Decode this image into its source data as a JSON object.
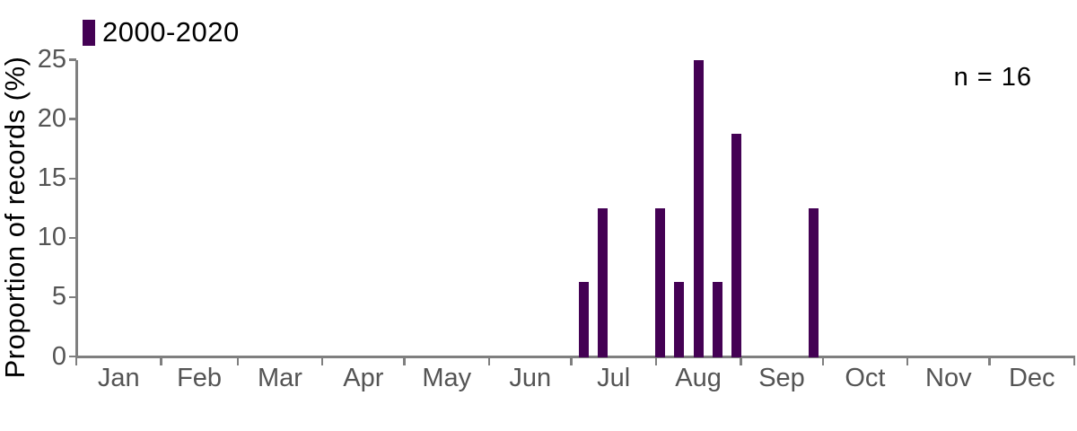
{
  "legend": {
    "label": "2000-2020"
  },
  "annotation": {
    "n_label": "n = 16"
  },
  "colors": {
    "bar": "#440154",
    "axis": "#7f7f7f",
    "tick_text": "#545454",
    "title_text": "#000000",
    "background": "#ffffff"
  },
  "chart_data": {
    "type": "bar",
    "title": "",
    "xlabel": "",
    "ylabel": "Proportion of records (%)",
    "ylim": [
      0,
      25
    ],
    "yticks": [
      0,
      5,
      10,
      15,
      20,
      25
    ],
    "categories_months": [
      "Jan",
      "Feb",
      "Mar",
      "Apr",
      "May",
      "Jun",
      "Jul",
      "Aug",
      "Sep",
      "Oct",
      "Nov",
      "Dec"
    ],
    "month_lengths_days": [
      31,
      28,
      31,
      30,
      31,
      30,
      31,
      31,
      30,
      31,
      30,
      31
    ],
    "bin": "weekly",
    "grid": false,
    "legend_position": "top-left",
    "legend_entries": [
      "2000-2020"
    ],
    "annotations": [
      "n = 16"
    ],
    "n": 16,
    "series": [
      {
        "name": "2000-2020",
        "color": "#440154",
        "bars": [
          {
            "week_of_year": 27,
            "center_day_of_year": 186,
            "value_pct": 6.25
          },
          {
            "week_of_year": 28,
            "center_day_of_year": 193,
            "value_pct": 12.5
          },
          {
            "week_of_year": 31,
            "center_day_of_year": 214,
            "value_pct": 12.5
          },
          {
            "week_of_year": 32,
            "center_day_of_year": 221,
            "value_pct": 6.25
          },
          {
            "week_of_year": 33,
            "center_day_of_year": 228,
            "value_pct": 25
          },
          {
            "week_of_year": 34,
            "center_day_of_year": 235,
            "value_pct": 6.25
          },
          {
            "week_of_year": 35,
            "center_day_of_year": 242,
            "value_pct": 18.75
          },
          {
            "week_of_year": 39,
            "center_day_of_year": 270,
            "value_pct": 12.5
          }
        ]
      }
    ]
  }
}
